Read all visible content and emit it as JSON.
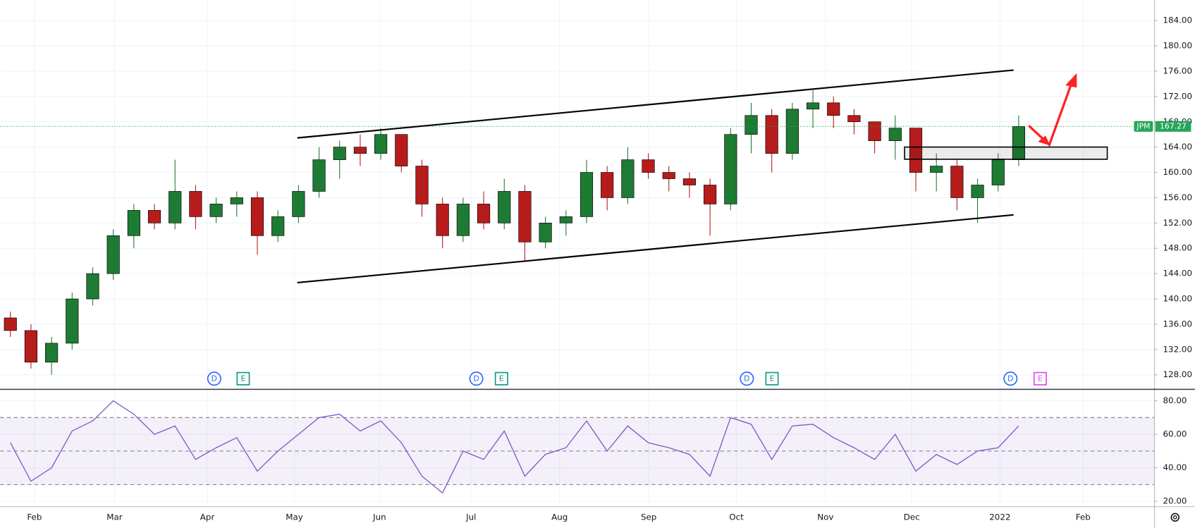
{
  "chart_data": [
    {
      "type": "candlestick",
      "symbol": "JPM",
      "last_price": 167.27,
      "up_color": "#1e7b34",
      "down_color": "#b71c1c",
      "last_price_color": "#26a65a",
      "categories": [
        null,
        null,
        null,
        null,
        null,
        null,
        null,
        null,
        null,
        null,
        null,
        null,
        null,
        null,
        null,
        null,
        null,
        null,
        null,
        null,
        null,
        null,
        null,
        null,
        null,
        null,
        null,
        null,
        null,
        null,
        null,
        null,
        null,
        null,
        null,
        null,
        null,
        null,
        null,
        null,
        null,
        null,
        null,
        null,
        null,
        null,
        null,
        null,
        null,
        null
      ],
      "open": [
        137,
        135,
        130,
        133,
        140,
        144,
        150,
        154,
        152,
        157,
        153,
        155,
        156,
        150,
        153,
        157,
        162,
        164,
        163,
        166,
        161,
        155,
        150,
        155,
        152,
        157,
        149,
        152,
        153,
        160,
        156,
        162,
        160,
        159,
        158,
        155,
        166,
        169,
        163,
        170,
        171,
        169,
        168,
        165,
        167,
        160,
        161,
        156,
        158,
        162
      ],
      "high": [
        138,
        136,
        134,
        141,
        145,
        151,
        155,
        155,
        162,
        158,
        156,
        157,
        157,
        154,
        158,
        164,
        165,
        166,
        167,
        166,
        162,
        156,
        156,
        157,
        159,
        158,
        153,
        154,
        162,
        161,
        164,
        163,
        161,
        160,
        159,
        167,
        171,
        170,
        171,
        173,
        172,
        170,
        168,
        169,
        167,
        163,
        162,
        159,
        163,
        169
      ],
      "low": [
        134,
        129,
        128,
        132,
        139,
        143,
        148,
        151,
        151,
        151,
        152,
        153,
        147,
        149,
        152,
        156,
        159,
        161,
        162,
        160,
        153,
        148,
        149,
        151,
        151,
        146,
        148,
        150,
        152,
        154,
        155,
        159,
        157,
        156,
        150,
        154,
        163,
        160,
        162,
        167,
        167,
        166,
        163,
        162,
        157,
        157,
        154,
        152,
        157,
        161
      ],
      "close": [
        135,
        130,
        133,
        140,
        144,
        150,
        154,
        152,
        157,
        153,
        155,
        156,
        150,
        153,
        157,
        162,
        164,
        163,
        166,
        161,
        155,
        150,
        155,
        152,
        157,
        149,
        152,
        153,
        160,
        156,
        162,
        160,
        159,
        158,
        155,
        166,
        169,
        163,
        170,
        171,
        169,
        168,
        165,
        167,
        160,
        161,
        156,
        158,
        162,
        167.27
      ],
      "xlim": [
        -0.5,
        55.6
      ],
      "ylim": [
        125.83,
        187.25
      ],
      "yticks": [
        {
          "value": 128,
          "label": "128.00"
        },
        {
          "value": 132,
          "label": "132.00"
        },
        {
          "value": 136,
          "label": "136.00"
        },
        {
          "value": 140,
          "label": "140.00"
        },
        {
          "value": 144,
          "label": "144.00"
        },
        {
          "value": 148,
          "label": "148.00"
        },
        {
          "value": 152,
          "label": "152.00"
        },
        {
          "value": 156,
          "label": "156.00"
        },
        {
          "value": 160,
          "label": "160.00"
        },
        {
          "value": 164,
          "label": "164.00"
        },
        {
          "value": 168,
          "label": "168.00"
        },
        {
          "value": 172,
          "label": "172.00"
        },
        {
          "value": 176,
          "label": "176.00"
        },
        {
          "value": 180,
          "label": "180.00"
        },
        {
          "value": 184,
          "label": "184.00"
        }
      ],
      "xticks": [
        {
          "value": 1.17,
          "label": "Feb"
        },
        {
          "value": 5.06,
          "label": "Mar"
        },
        {
          "value": 9.57,
          "label": "Apr"
        },
        {
          "value": 13.8,
          "label": "May"
        },
        {
          "value": 17.94,
          "label": "Jun"
        },
        {
          "value": 22.39,
          "label": "Jul"
        },
        {
          "value": 26.69,
          "label": "Aug"
        },
        {
          "value": 31.02,
          "label": "Sep"
        },
        {
          "value": 35.28,
          "label": "Oct"
        },
        {
          "value": 39.61,
          "label": "Nov"
        },
        {
          "value": 43.8,
          "label": "Dec"
        },
        {
          "value": 48.09,
          "label": "2022"
        },
        {
          "value": 52.13,
          "label": "Feb"
        }
      ],
      "events": [
        "D",
        "E",
        "D",
        "E",
        "D",
        "E",
        "D",
        "E"
      ],
      "grid": true
    },
    {
      "type": "line",
      "color": "#7e57c2",
      "band_color": "#7e57c2",
      "values": [
        55,
        32,
        40,
        62,
        68,
        80,
        72,
        60,
        65,
        45,
        52,
        58,
        38,
        50,
        60,
        70,
        72,
        62,
        68,
        55,
        35,
        25,
        50,
        45,
        62,
        35,
        48,
        52,
        68,
        50,
        65,
        55,
        52,
        48,
        35,
        70,
        66,
        45,
        65,
        66,
        58,
        52,
        45,
        60,
        38,
        48,
        42,
        50,
        52,
        65
      ],
      "xlim": [
        -0.5,
        55.6
      ],
      "ylim": [
        16.8,
        86.4
      ],
      "bands": [
        30,
        50,
        70
      ],
      "yticks": [
        {
          "value": 20,
          "label": "20.00"
        },
        {
          "value": 40,
          "label": "40.00"
        },
        {
          "value": 60,
          "label": "60.00"
        },
        {
          "value": 80,
          "label": "80.00"
        }
      ],
      "grid": true
    }
  ]
}
